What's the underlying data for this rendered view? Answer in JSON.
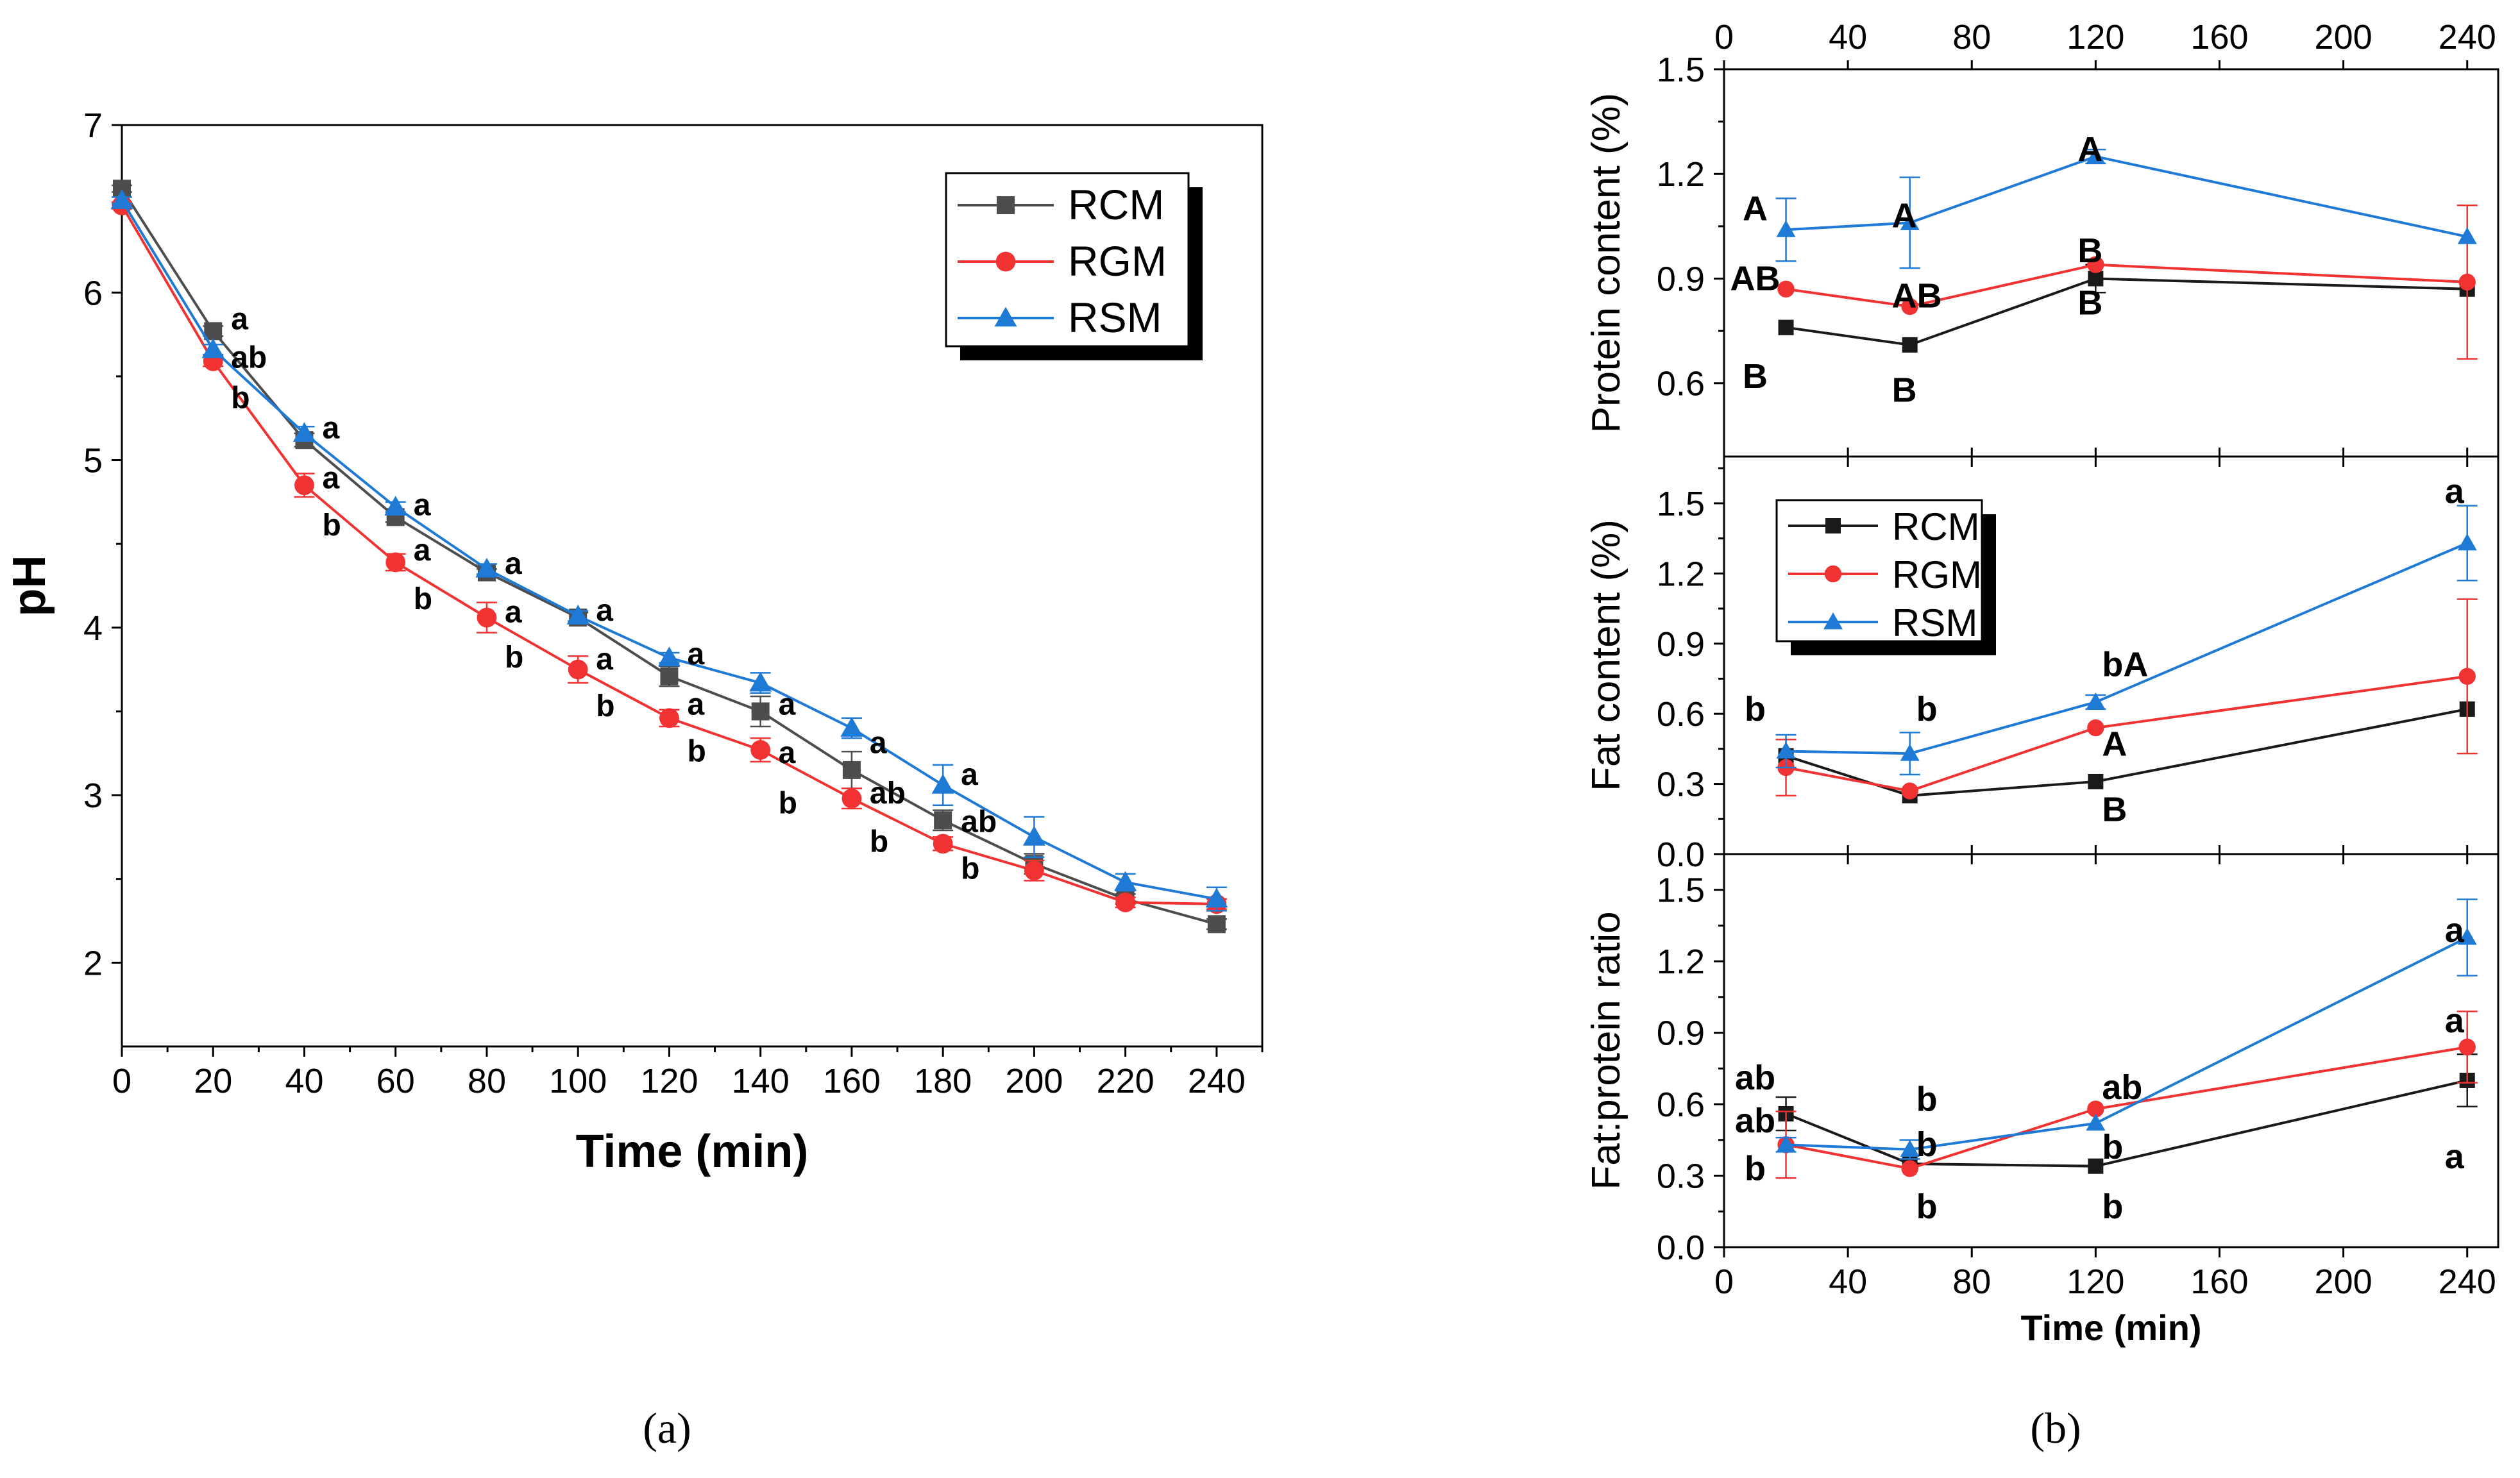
{
  "colors": {
    "RCM": "#4d4d4d",
    "RGM": "#f03232",
    "RSM": "#1f7ad6",
    "RCMb": "#1a1a1a"
  },
  "captions": {
    "a": "(a)",
    "b": "(b)"
  },
  "chart_data": [
    {
      "id": "a",
      "type": "line",
      "title": "",
      "xlabel": "Time (min)",
      "ylabel": "pH",
      "xlim": [
        0,
        250
      ],
      "ylim": [
        1.5,
        7
      ],
      "xticks": [
        "0",
        "20",
        "40",
        "60",
        "80",
        "100",
        "120",
        "140",
        "160",
        "180",
        "200",
        "220",
        "240"
      ],
      "yticks": [
        "2",
        "3",
        "4",
        "5",
        "6",
        "7"
      ],
      "legend": [
        "RCM",
        "RGM",
        "RSM"
      ],
      "x": [
        0,
        20,
        40,
        60,
        80,
        100,
        120,
        140,
        160,
        180,
        200,
        220,
        240
      ],
      "series": [
        {
          "name": "RCM",
          "values": [
            6.62,
            5.77,
            5.12,
            4.66,
            4.33,
            4.06,
            3.71,
            3.5,
            3.15,
            2.85,
            2.59,
            2.38,
            2.23
          ],
          "err": [
            0.02,
            0.03,
            0.04,
            0.03,
            0.02,
            0.03,
            0.06,
            0.09,
            0.11,
            0.06,
            0.06,
            0.03,
            0.03
          ]
        },
        {
          "name": "RGM",
          "values": [
            6.52,
            5.59,
            4.85,
            4.39,
            4.06,
            3.75,
            3.46,
            3.27,
            2.98,
            2.71,
            2.55,
            2.36,
            2.35
          ],
          "err": [
            0.02,
            0.03,
            0.07,
            0.05,
            0.09,
            0.08,
            0.05,
            0.07,
            0.06,
            0.04,
            0.06,
            0.03,
            0.03
          ]
        },
        {
          "name": "RSM",
          "values": [
            6.55,
            5.66,
            5.16,
            4.72,
            4.35,
            4.07,
            3.82,
            3.67,
            3.4,
            3.06,
            2.75,
            2.48,
            2.38
          ],
          "err": [
            0.02,
            0.03,
            0.04,
            0.03,
            0.03,
            0.03,
            0.03,
            0.06,
            0.06,
            0.12,
            0.12,
            0.05,
            0.07
          ]
        }
      ],
      "annotations": [
        {
          "x": 20,
          "y": 5.85,
          "text": "a"
        },
        {
          "x": 20,
          "y": 5.62,
          "text": "ab"
        },
        {
          "x": 20,
          "y": 5.38,
          "text": "b"
        },
        {
          "x": 40,
          "y": 5.2,
          "text": "a"
        },
        {
          "x": 40,
          "y": 4.9,
          "text": "a"
        },
        {
          "x": 40,
          "y": 4.62,
          "text": "b"
        },
        {
          "x": 60,
          "y": 4.74,
          "text": "a"
        },
        {
          "x": 60,
          "y": 4.47,
          "text": "a"
        },
        {
          "x": 60,
          "y": 4.18,
          "text": "b"
        },
        {
          "x": 80,
          "y": 4.39,
          "text": "a"
        },
        {
          "x": 80,
          "y": 4.1,
          "text": "a"
        },
        {
          "x": 80,
          "y": 3.83,
          "text": "b"
        },
        {
          "x": 100,
          "y": 4.11,
          "text": "a"
        },
        {
          "x": 100,
          "y": 3.82,
          "text": "a"
        },
        {
          "x": 100,
          "y": 3.54,
          "text": "b"
        },
        {
          "x": 120,
          "y": 3.85,
          "text": "a"
        },
        {
          "x": 120,
          "y": 3.55,
          "text": "a"
        },
        {
          "x": 120,
          "y": 3.27,
          "text": "b"
        },
        {
          "x": 140,
          "y": 3.55,
          "text": "a"
        },
        {
          "x": 140,
          "y": 3.26,
          "text": "a"
        },
        {
          "x": 140,
          "y": 2.96,
          "text": "b"
        },
        {
          "x": 160,
          "y": 3.32,
          "text": "a"
        },
        {
          "x": 160,
          "y": 3.02,
          "text": "ab"
        },
        {
          "x": 160,
          "y": 2.73,
          "text": "b"
        },
        {
          "x": 180,
          "y": 3.13,
          "text": "a"
        },
        {
          "x": 180,
          "y": 2.85,
          "text": "ab"
        },
        {
          "x": 180,
          "y": 2.57,
          "text": "b"
        }
      ]
    },
    {
      "id": "b1",
      "type": "line",
      "ylabel": "Protein content (%)",
      "xlim": [
        0,
        250
      ],
      "ylim": [
        0.39,
        1.5
      ],
      "xticks": [
        "0",
        "40",
        "80",
        "120",
        "160",
        "200",
        "240"
      ],
      "yticks": [
        "0.6",
        "0.9",
        "1.2",
        "1.5"
      ],
      "x": [
        20,
        60,
        120,
        240
      ],
      "series": [
        {
          "name": "RCM",
          "values": [
            0.76,
            0.71,
            0.9,
            0.87
          ],
          "err": [
            0,
            0,
            0.04,
            0.0
          ]
        },
        {
          "name": "RGM",
          "values": [
            0.87,
            0.82,
            0.94,
            0.89
          ],
          "err": [
            0,
            0,
            0,
            0.22
          ]
        },
        {
          "name": "RSM",
          "values": [
            1.04,
            1.06,
            1.25,
            1.02
          ],
          "err": [
            0.09,
            0.13,
            0.02,
            0
          ]
        }
      ],
      "annotations": [
        {
          "x": 20,
          "y": 1.1,
          "text": "A"
        },
        {
          "x": 20,
          "y": 0.9,
          "text": "AB"
        },
        {
          "x": 20,
          "y": 0.62,
          "text": "B"
        },
        {
          "x": 60,
          "y": 1.08,
          "text": "A"
        },
        {
          "x": 60,
          "y": 0.85,
          "text": "AB"
        },
        {
          "x": 60,
          "y": 0.58,
          "text": "B"
        },
        {
          "x": 120,
          "y": 1.27,
          "text": "A"
        },
        {
          "x": 120,
          "y": 0.98,
          "text": "B"
        },
        {
          "x": 120,
          "y": 0.83,
          "text": "B"
        }
      ]
    },
    {
      "id": "b2",
      "type": "line",
      "ylabel": "Fat content (%)",
      "xlim": [
        0,
        250
      ],
      "ylim": [
        0,
        1.7
      ],
      "xticks": [
        "0",
        "40",
        "80",
        "120",
        "160",
        "200",
        "240"
      ],
      "yticks": [
        "0.0",
        "0.3",
        "0.6",
        "0.9",
        "1.2",
        "1.5"
      ],
      "legend": [
        "RCM",
        "RGM",
        "RSM"
      ],
      "x": [
        20,
        60,
        120,
        240
      ],
      "series": [
        {
          "name": "RCM",
          "values": [
            0.42,
            0.25,
            0.31,
            0.62
          ],
          "err": [
            0,
            0,
            0,
            0.0
          ]
        },
        {
          "name": "RGM",
          "values": [
            0.37,
            0.27,
            0.54,
            0.76
          ],
          "err": [
            0.12,
            0,
            0,
            0.33
          ]
        },
        {
          "name": "RSM",
          "values": [
            0.44,
            0.43,
            0.65,
            1.33
          ],
          "err": [
            0.07,
            0.09,
            0.03,
            0.16
          ]
        }
      ],
      "annotations": [
        {
          "x": 20,
          "y": 0.62,
          "text": "b"
        },
        {
          "x": 60,
          "y": 0.62,
          "text": "b"
        },
        {
          "x": 120,
          "y": 0.81,
          "text": "bA"
        },
        {
          "x": 120,
          "y": 0.47,
          "text": "A"
        },
        {
          "x": 120,
          "y": 0.19,
          "text": "B"
        },
        {
          "x": 240,
          "y": 1.55,
          "text": "a"
        }
      ]
    },
    {
      "id": "b3",
      "type": "line",
      "ylabel": "Fat:protein ratio",
      "xlabel": "Time (min)",
      "xlim": [
        0,
        250
      ],
      "ylim": [
        0,
        1.65
      ],
      "xticks": [
        "0",
        "40",
        "80",
        "120",
        "160",
        "200",
        "240"
      ],
      "yticks": [
        "0.0",
        "0.3",
        "0.6",
        "0.9",
        "1.2",
        "1.5"
      ],
      "x": [
        20,
        60,
        120,
        240
      ],
      "series": [
        {
          "name": "RCM",
          "values": [
            0.56,
            0.35,
            0.34,
            0.7
          ],
          "err": [
            0.07,
            0,
            0,
            0.11
          ]
        },
        {
          "name": "RGM",
          "values": [
            0.43,
            0.33,
            0.58,
            0.84
          ],
          "err": [
            0.14,
            0,
            0,
            0.15
          ]
        },
        {
          "name": "RSM",
          "values": [
            0.43,
            0.41,
            0.52,
            1.3
          ],
          "err": [
            0.03,
            0.04,
            0,
            0.16
          ]
        }
      ],
      "annotations": [
        {
          "x": 20,
          "y": 0.71,
          "text": "ab"
        },
        {
          "x": 20,
          "y": 0.53,
          "text": "ab"
        },
        {
          "x": 20,
          "y": 0.33,
          "text": "b"
        },
        {
          "x": 60,
          "y": 0.62,
          "text": "b"
        },
        {
          "x": 60,
          "y": 0.43,
          "text": "b"
        },
        {
          "x": 60,
          "y": 0.17,
          "text": "b"
        },
        {
          "x": 120,
          "y": 0.67,
          "text": "ab"
        },
        {
          "x": 120,
          "y": 0.42,
          "text": "b"
        },
        {
          "x": 120,
          "y": 0.17,
          "text": "b"
        },
        {
          "x": 240,
          "y": 1.33,
          "text": "a"
        },
        {
          "x": 240,
          "y": 0.95,
          "text": "a"
        },
        {
          "x": 240,
          "y": 0.38,
          "text": "a"
        }
      ]
    }
  ]
}
